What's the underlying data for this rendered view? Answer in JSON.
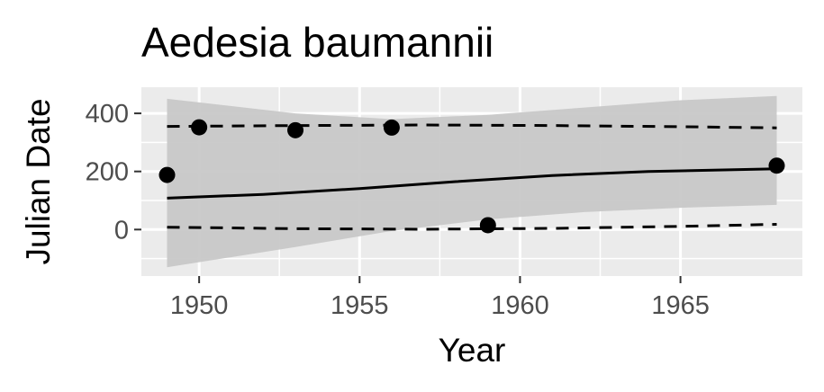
{
  "chart_data": {
    "type": "scatter",
    "title": "Aedesia baumannii",
    "xlabel": "Year",
    "ylabel": "Julian Date",
    "xlim": [
      1948.2,
      1968.8
    ],
    "ylim": [
      -160,
      490
    ],
    "x_ticks": [
      1950,
      1955,
      1960,
      1965
    ],
    "x_tick_labels": [
      "1950",
      "1955",
      "1960",
      "1965"
    ],
    "y_ticks": [
      0,
      200,
      400
    ],
    "y_tick_labels": [
      "0",
      "200",
      "400"
    ],
    "grid": true,
    "points": [
      {
        "x": 1949,
        "y": 188
      },
      {
        "x": 1950,
        "y": 352
      },
      {
        "x": 1953,
        "y": 342
      },
      {
        "x": 1956,
        "y": 351
      },
      {
        "x": 1959,
        "y": 15
      },
      {
        "x": 1968,
        "y": 220
      }
    ],
    "fit_line": {
      "name": "trend",
      "style": "solid",
      "x": [
        1949,
        1952,
        1955,
        1958,
        1961,
        1964,
        1968
      ],
      "y": [
        108,
        121,
        141,
        165,
        186,
        200,
        209
      ]
    },
    "confidence_band": {
      "x": [
        1949,
        1953,
        1956,
        1959,
        1962,
        1965,
        1968
      ],
      "lower": [
        -130,
        -60,
        -5,
        35,
        60,
        75,
        85
      ],
      "upper": [
        450,
        400,
        380,
        395,
        420,
        445,
        460
      ]
    },
    "quantile_lines": [
      {
        "name": "upper-quantile",
        "style": "dashed",
        "x": [
          1949,
          1953,
          1957,
          1961,
          1965,
          1968
        ],
        "y": [
          355,
          358,
          360,
          358,
          354,
          350
        ]
      },
      {
        "name": "lower-quantile",
        "style": "dashed",
        "x": [
          1949,
          1953,
          1957,
          1961,
          1965,
          1968
        ],
        "y": [
          8,
          3,
          1,
          4,
          11,
          18
        ]
      }
    ],
    "colors": {
      "panel": "#ebebeb",
      "grid_major": "#ffffff",
      "band": "#c8c8c8",
      "line": "#000000",
      "point": "#000000",
      "tick": "#333333"
    }
  }
}
